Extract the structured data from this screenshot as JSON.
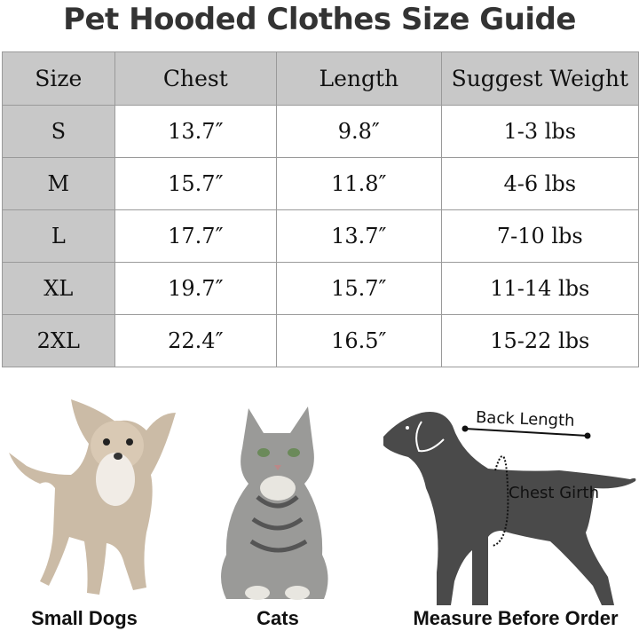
{
  "title": "Pet Hooded Clothes Size Guide",
  "table": {
    "headers": [
      "Size",
      "Chest",
      "Length",
      "Suggest Weight"
    ],
    "rows": [
      [
        "S",
        "13.7″",
        "9.8″",
        "1-3 lbs"
      ],
      [
        "M",
        "15.7″",
        "11.8″",
        "4-6 lbs"
      ],
      [
        "L",
        "17.7″",
        "13.7″",
        "7-10 lbs"
      ],
      [
        "XL",
        "19.7″",
        "15.7″",
        "11-14 lbs"
      ],
      [
        "2XL",
        "22.4″",
        "16.5″",
        "15-22 lbs"
      ]
    ]
  },
  "photos": {
    "small_dogs_label": "Small Dogs",
    "cats_label": "Cats",
    "measure_label": "Measure Before Order"
  },
  "diagram": {
    "back_length": "Back Length",
    "chest_girth": "Chest Girth"
  },
  "colors": {
    "header_bg": "#c8c8c8",
    "silhouette": "#4a4a4a"
  }
}
